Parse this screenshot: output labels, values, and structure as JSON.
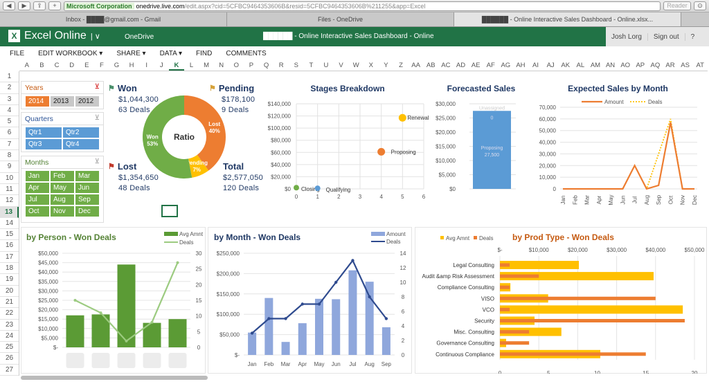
{
  "browser": {
    "nav_back": "◀",
    "nav_forward": "▶",
    "share": "⇪",
    "add": "+",
    "security_label": "Microsoft Corporation",
    "url_host": "onedrive.live.com",
    "url_path": "/edit.aspx?cid=5CFBC9464353606B&resid=5CFBC9464353606B%211255&app=Excel",
    "reader": "Reader",
    "tabs": [
      {
        "label": "Inbox - ████@gmail.com - Gmail"
      },
      {
        "label": "Files - OneDrive"
      },
      {
        "label": "██████ - Online Interactive Sales Dashboard - Online.xlsx..."
      }
    ]
  },
  "app": {
    "name": "Excel Online",
    "onedrive": "OneDrive",
    "doc_title": "██████ - Online Interactive Sales Dashboard - Online",
    "user": "Josh Lorg",
    "sign_out": "Sign out",
    "help": "?"
  },
  "menu": [
    "FILE",
    "EDIT WORKBOOK ▾",
    "SHARE ▾",
    "DATA ▾",
    "FIND",
    "COMMENTS"
  ],
  "columns": [
    "A",
    "B",
    "C",
    "D",
    "E",
    "F",
    "G",
    "H",
    "I",
    "J",
    "K",
    "L",
    "M",
    "N",
    "O",
    "P",
    "Q",
    "R",
    "S",
    "T",
    "U",
    "V",
    "W",
    "X",
    "Y",
    "Z",
    "AA",
    "AB",
    "AC",
    "AD",
    "AE",
    "AF",
    "AG",
    "AH",
    "AI",
    "AJ",
    "AK",
    "AL",
    "AM",
    "AN",
    "AO",
    "AP",
    "AQ",
    "AR",
    "AS",
    "AT"
  ],
  "selected_column": "K",
  "rows": [
    "1",
    "2",
    "3",
    "4",
    "5",
    "6",
    "7",
    "8",
    "9",
    "10",
    "11",
    "12",
    "13",
    "14",
    "15",
    "16",
    "17",
    "18",
    "19",
    "20",
    "21",
    "22",
    "23",
    "24",
    "25",
    "26",
    "27"
  ],
  "selected_row": "13",
  "slicers": {
    "years": {
      "title": "Years",
      "items": [
        "2014",
        "2013",
        "2012"
      ],
      "selected": "2014"
    },
    "quarters": {
      "title": "Quarters",
      "items": [
        "Qtr1",
        "Qtr2",
        "Qtr3",
        "Qtr4"
      ]
    },
    "months": {
      "title": "Months",
      "items": [
        "Jan",
        "Feb",
        "Mar",
        "Apr",
        "May",
        "Jun",
        "Jul",
        "Aug",
        "Sep",
        "Oct",
        "Nov",
        "Dec"
      ]
    }
  },
  "kpis": {
    "won": {
      "title": "Won",
      "amount": "$1,044,300",
      "deals": "63 Deals"
    },
    "pending": {
      "title": "Pending",
      "amount": "$178,100",
      "deals": "9 Deals"
    },
    "lost": {
      "title": "Lost",
      "amount": "$1,354,650",
      "deals": "48 Deals"
    },
    "total": {
      "title": "Total",
      "amount": "$2,577,050",
      "deals": "120 Deals"
    }
  },
  "colors": {
    "green": "#70AD47",
    "orange": "#ED7D31",
    "yellow": "#FFC000",
    "blue": "#5B9BD5",
    "navy": "#2F4B8F",
    "excel": "#217346"
  },
  "chart_data": [
    {
      "type": "pie",
      "title": "Ratio",
      "labels": [
        "Lost",
        "Pending",
        "Won"
      ],
      "values": [
        40,
        7,
        53
      ],
      "unit": "%"
    },
    {
      "type": "scatter",
      "title": "Stages Breakdown",
      "xlim": [
        0,
        6
      ],
      "ylim": [
        0,
        140000
      ],
      "xticks": [
        "0",
        "1",
        "2",
        "3",
        "4",
        "5",
        "6"
      ],
      "yticks": [
        "$0",
        "$20,000",
        "$40,000",
        "$60,000",
        "$80,000",
        "$100,000",
        "$120,000",
        "$140,000"
      ],
      "points": [
        {
          "label": "Closing",
          "x": 0,
          "y": 2000
        },
        {
          "label": "Qualifying",
          "x": 1,
          "y": 1000
        },
        {
          "label": "Proposing",
          "x": 4,
          "y": 61000
        },
        {
          "label": "Renewal",
          "x": 5,
          "y": 117000
        }
      ],
      "grid": true
    },
    {
      "type": "bar",
      "title": "Forecasted Sales",
      "ylim": [
        0,
        30000
      ],
      "yticks": [
        "$0",
        "$5,000",
        "$10,000",
        "$15,000",
        "$20,000",
        "$25,000",
        "$30,000"
      ],
      "series": [
        {
          "name": "Proposing",
          "values": [
            27500
          ]
        },
        {
          "name": "Unassigned",
          "values": [
            0
          ]
        }
      ],
      "data_labels": [
        "Proposing",
        "27,500",
        "Unassigned",
        "0"
      ]
    },
    {
      "type": "line",
      "title": "Expected Sales by Month",
      "ylim": [
        0,
        70000
      ],
      "categories": [
        "Jan",
        "Feb",
        "Mar",
        "Apr",
        "May",
        "Jun",
        "Jul",
        "Aug",
        "Sep",
        "Oct",
        "Nov",
        "Dec"
      ],
      "yticks": [
        "0",
        "10,000",
        "20,000",
        "30,000",
        "40,000",
        "50,000",
        "60,000",
        "70,000"
      ],
      "series": [
        {
          "name": "Amount",
          "values": [
            0,
            0,
            0,
            0,
            0,
            0,
            20000,
            0,
            3000,
            57000,
            0,
            0
          ]
        },
        {
          "name": "Deals",
          "values": [
            0,
            0,
            0,
            0,
            0,
            0,
            20000,
            0,
            30000,
            60000,
            0,
            0
          ]
        }
      ],
      "legend": "top"
    },
    {
      "type": "bar",
      "title": "by Person - Won Deals",
      "ylim": [
        0,
        50000
      ],
      "y2lim": [
        0,
        30
      ],
      "yticks": [
        "$-",
        "$5,000",
        "$10,000",
        "$15,000",
        "$20,000",
        "$25,000",
        "$30,000",
        "$35,000",
        "$40,000",
        "$45,000",
        "$50,000"
      ],
      "y2ticks": [
        "0",
        "5",
        "10",
        "15",
        "20",
        "25",
        "30"
      ],
      "series": [
        {
          "name": "Avg Amnt",
          "values": [
            17000,
            17500,
            44000,
            13000,
            15000
          ]
        },
        {
          "name": "Deals",
          "values": [
            15,
            11,
            2,
            8,
            27
          ]
        }
      ],
      "legend": "top-right"
    },
    {
      "type": "bar",
      "title": "by Month - Won Deals",
      "ylim": [
        0,
        250000
      ],
      "y2lim": [
        0,
        14
      ],
      "categories": [
        "Jan",
        "Feb",
        "Mar",
        "Apr",
        "May",
        "Jun",
        "Jul",
        "Aug",
        "Sep"
      ],
      "yticks": [
        "$-",
        "$50,000",
        "$100,000",
        "$150,000",
        "$200,000",
        "$250,000"
      ],
      "y2ticks": [
        "0",
        "2",
        "4",
        "6",
        "8",
        "10",
        "12",
        "14"
      ],
      "series": [
        {
          "name": "Amount",
          "values": [
            55000,
            140000,
            32000,
            78000,
            138000,
            137000,
            208000,
            180000,
            68000
          ]
        },
        {
          "name": "Deals",
          "values": [
            3,
            5,
            5,
            7,
            7,
            10,
            13,
            8,
            5
          ]
        }
      ],
      "legend": "top-right"
    },
    {
      "type": "bar",
      "title": "by Prod Type - Won Deals",
      "orientation": "horizontal",
      "xlim": [
        0,
        50000
      ],
      "x2lim": [
        0,
        20
      ],
      "categories": [
        "Legal Consulting",
        "Audit &amp Risk Assessment",
        "Compliance Consulting",
        "VISO",
        "VCO",
        "Security",
        "Misc. Consulting",
        "Governance Consulting",
        "Continuous Compliance"
      ],
      "xticks": [
        "$-",
        "$10,000",
        "$20,000",
        "$30,000",
        "$40,000",
        "$50,000"
      ],
      "x2ticks": [
        "0",
        "5",
        "10",
        "15",
        "20"
      ],
      "series": [
        {
          "name": "Avg Amnt",
          "values": [
            20300,
            39500,
            2700,
            12400,
            47000,
            8900,
            15800,
            1600,
            25800
          ]
        },
        {
          "name": "Deals",
          "values": [
            1,
            4,
            1,
            16,
            1,
            19,
            3,
            3,
            15
          ]
        }
      ],
      "legend": "top-left"
    }
  ]
}
